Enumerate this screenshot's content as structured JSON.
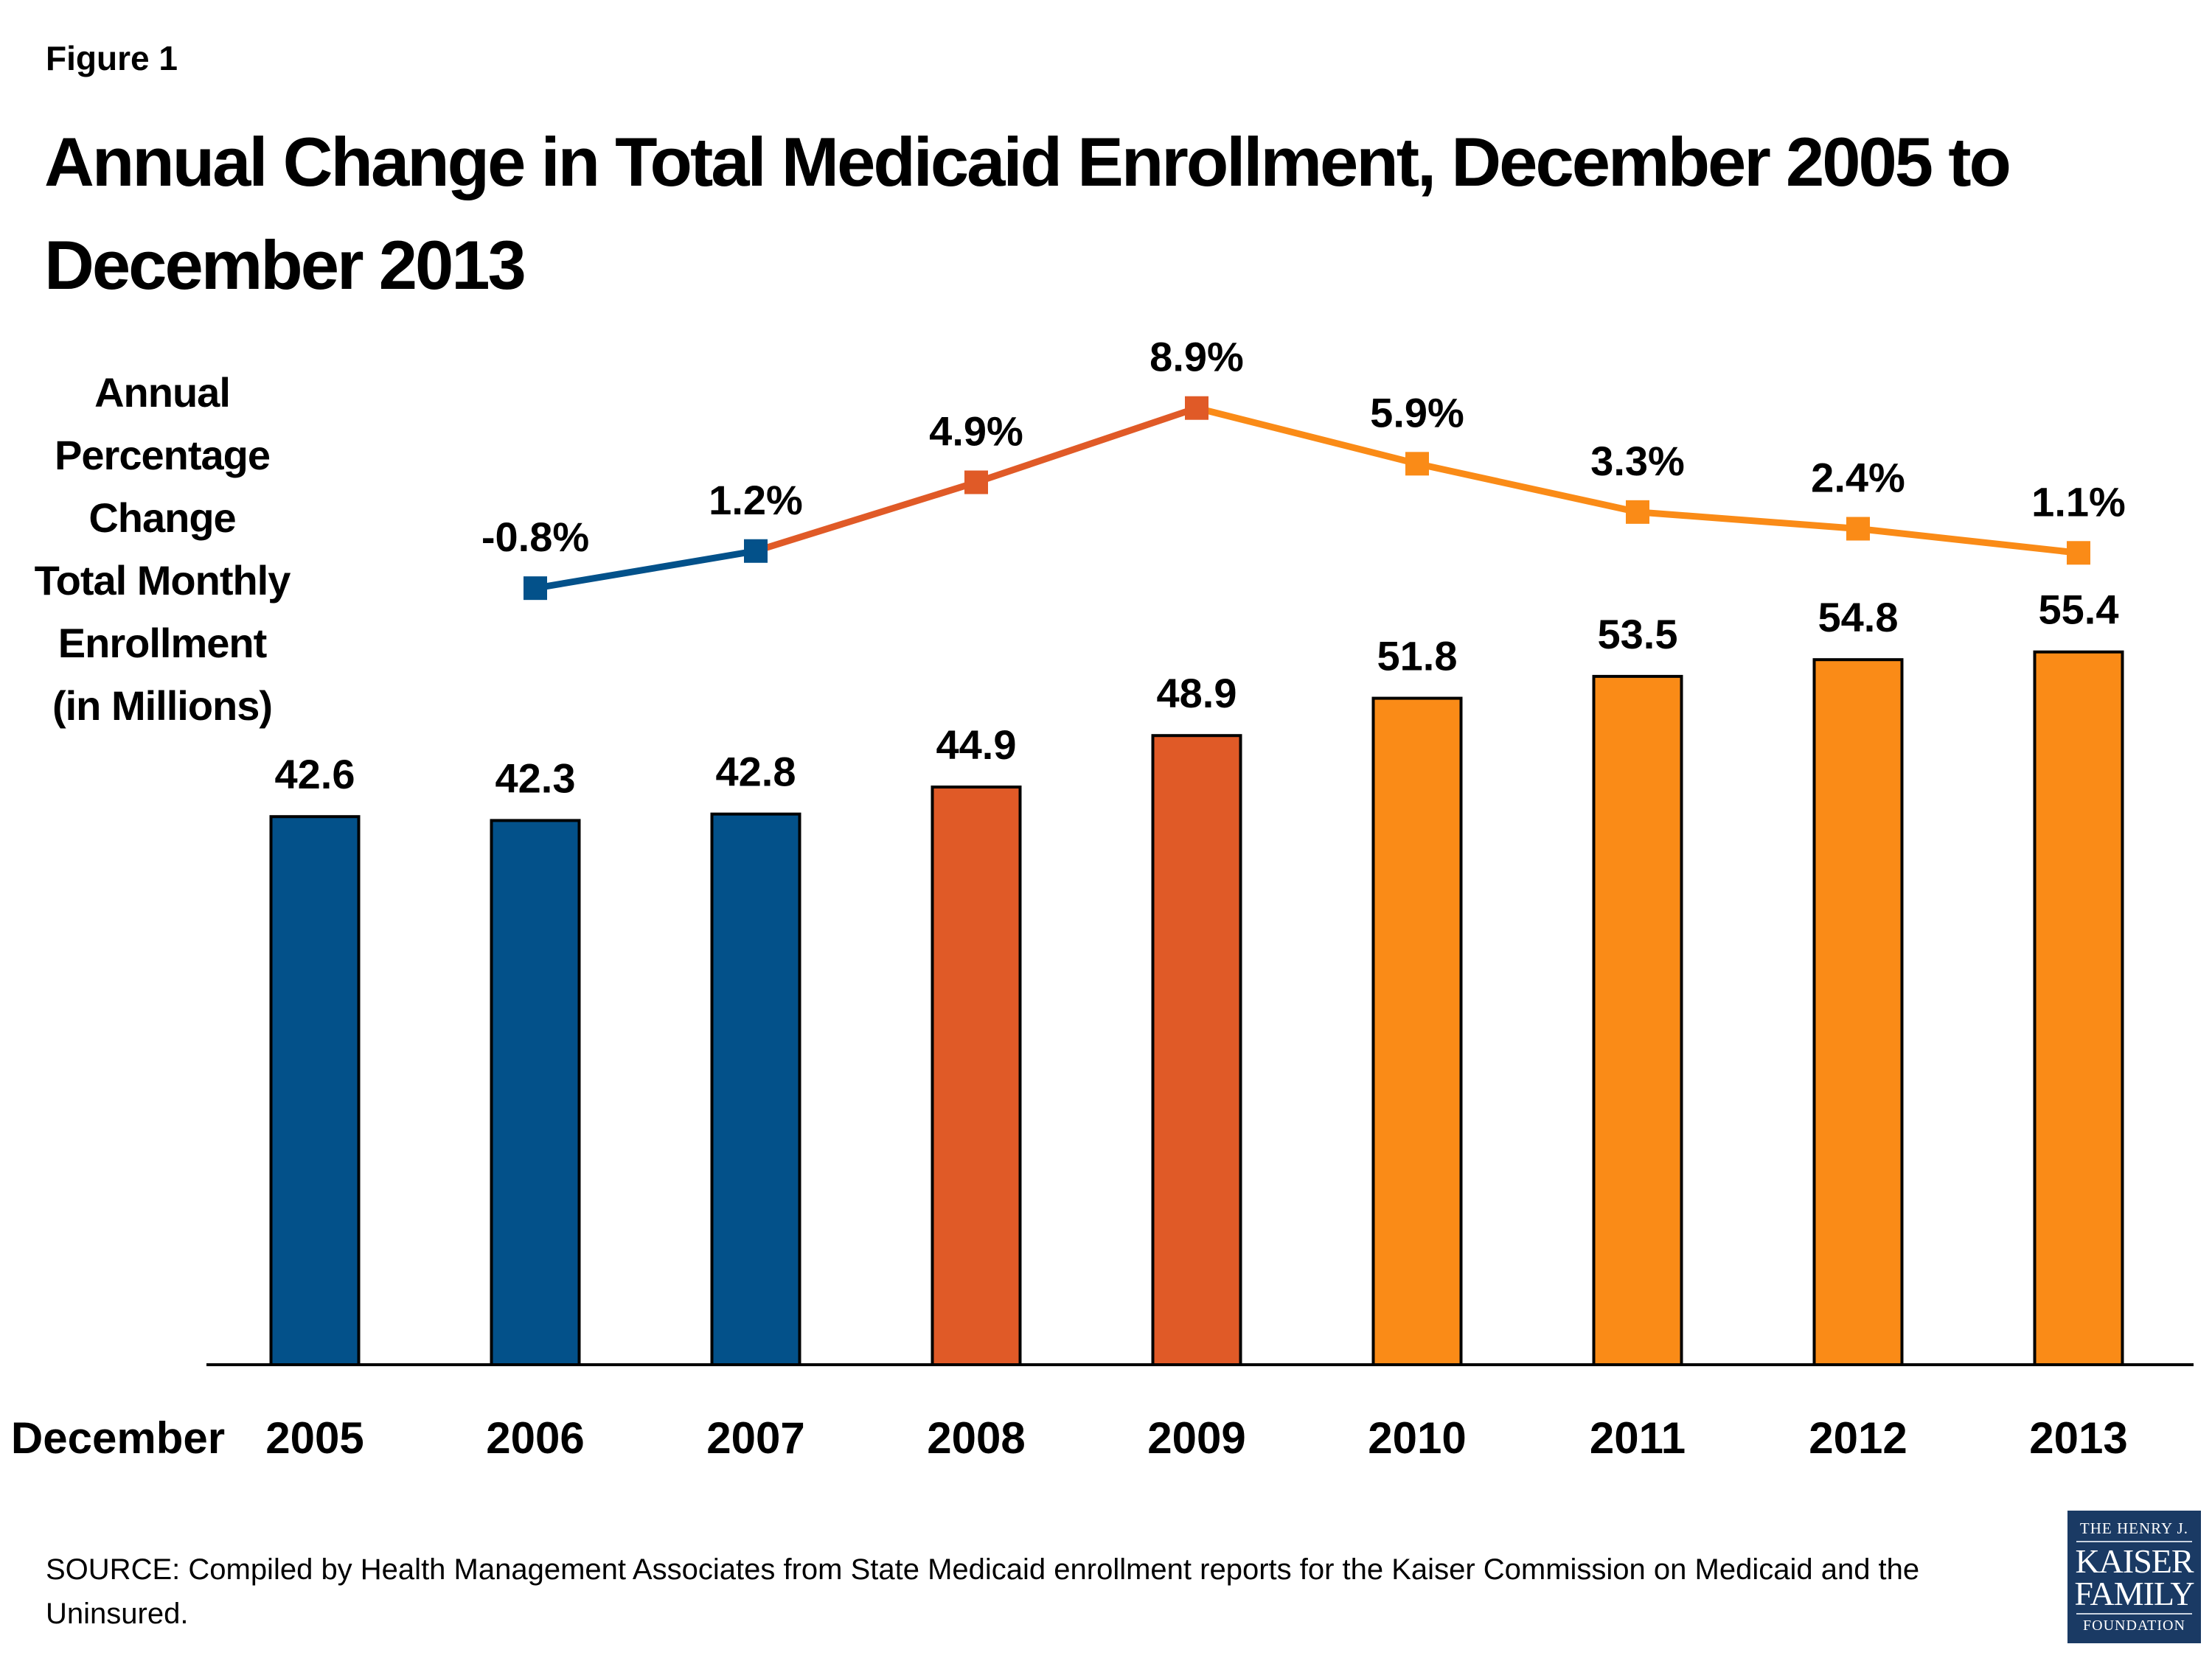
{
  "figure_label": "Figure 1",
  "title": "Annual Change in Total Medicaid Enrollment, December 2005 to December 2013",
  "y_label_lines": [
    "Annual",
    "Percentage",
    "Change",
    "Total Monthly",
    "Enrollment",
    "(in Millions)"
  ],
  "source": "SOURCE: Compiled by Health Management Associates from State Medicaid enrollment reports for the Kaiser Commission on Medicaid and the Uninsured.",
  "logo": {
    "line1": "THE HENRY J.",
    "line2": "KAISER",
    "line3": "FAMILY",
    "line4": "FOUNDATION"
  },
  "colors": {
    "blue": "#03518A",
    "dark_orange": "#E05A27",
    "orange": "#FA8B17"
  },
  "chart_data": {
    "type": "bar",
    "x_axis_prefix": "December",
    "categories": [
      "2005",
      "2006",
      "2007",
      "2008",
      "2009",
      "2010",
      "2011",
      "2012",
      "2013"
    ],
    "series": [
      {
        "type": "bar",
        "values": [
          42.6,
          42.3,
          42.8,
          44.9,
          48.9,
          51.8,
          53.5,
          54.8,
          55.4
        ],
        "labels": [
          "42.6",
          "42.3",
          "42.8",
          "44.9",
          "48.9",
          "51.8",
          "53.5",
          "54.8",
          "55.4"
        ],
        "ylim": [
          0,
          60
        ]
      },
      {
        "type": "line",
        "values": [
          null,
          -0.8,
          1.2,
          4.9,
          8.9,
          5.9,
          3.3,
          2.4,
          1.1
        ],
        "labels": [
          null,
          "-0.8%",
          "1.2%",
          "4.9%",
          "8.9%",
          "5.9%",
          "3.3%",
          "2.4%",
          "1.1%"
        ]
      }
    ],
    "bar_colors": [
      "blue",
      "blue",
      "blue",
      "dark_orange",
      "dark_orange",
      "orange",
      "orange",
      "orange",
      "orange"
    ],
    "grid": false,
    "legend": "none"
  }
}
